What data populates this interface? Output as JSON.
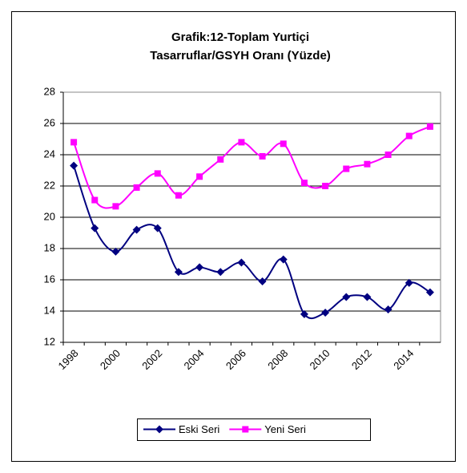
{
  "chart_data": {
    "type": "line",
    "title": [
      "Grafik:12-Toplam Yurtiçi",
      "Tasarruflar/GSYH Oranı (Yüzde)"
    ],
    "categories": [
      "1998",
      null,
      "2000",
      null,
      "2002",
      null,
      "2004",
      null,
      "2006",
      null,
      "2008",
      null,
      "2010",
      null,
      "2012",
      null,
      "2014",
      null
    ],
    "series": [
      {
        "name": "Eski Seri",
        "color": "#000080",
        "marker": "diamond",
        "values": [
          23.3,
          19.3,
          17.8,
          19.2,
          19.3,
          16.5,
          16.8,
          16.5,
          17.1,
          15.9,
          17.3,
          13.8,
          13.9,
          14.9,
          14.9,
          14.1,
          15.8,
          15.2
        ]
      },
      {
        "name": "Yeni Seri",
        "color": "#ff00ff",
        "marker": "square",
        "values": [
          24.8,
          21.1,
          20.7,
          21.9,
          22.8,
          21.4,
          22.6,
          23.7,
          24.8,
          23.9,
          24.7,
          22.2,
          22.0,
          23.1,
          23.4,
          24.0,
          25.2,
          25.8
        ]
      }
    ],
    "ylim": [
      12,
      28
    ],
    "yticks": [
      12,
      14,
      16,
      18,
      20,
      22,
      24,
      26,
      28
    ],
    "grid": true,
    "legend": "bottom"
  }
}
